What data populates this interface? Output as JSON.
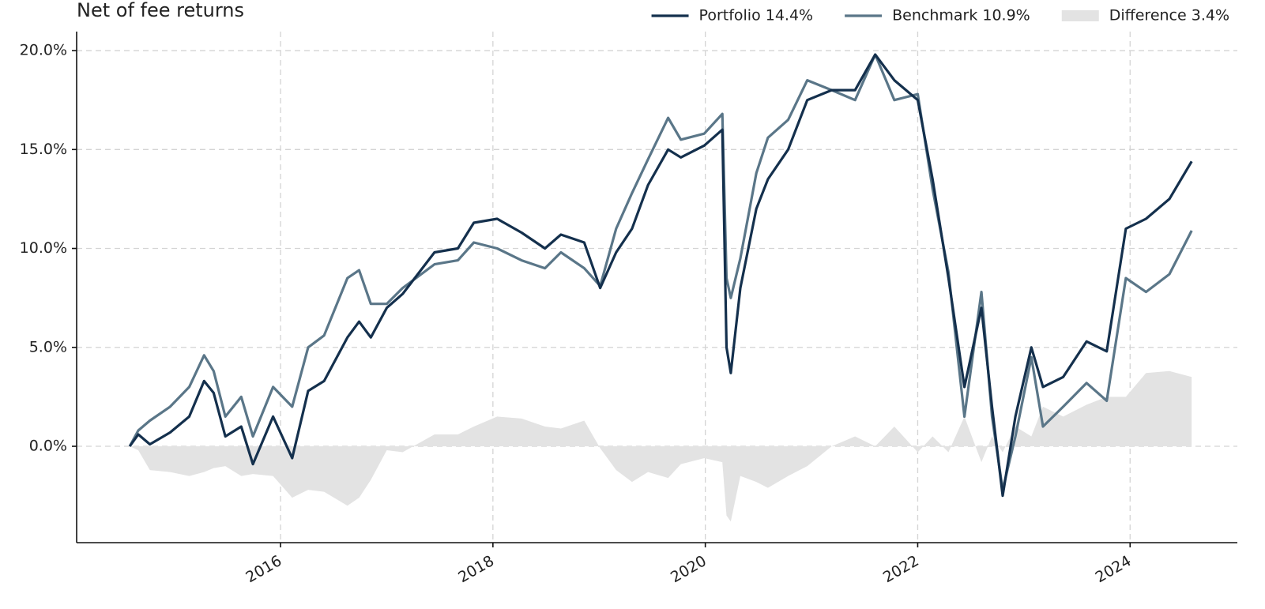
{
  "chart_data": {
    "type": "line",
    "title": "Net of fee returns",
    "x": [
      2014.58,
      2014.66,
      2014.77,
      2014.96,
      2015.14,
      2015.28,
      2015.37,
      2015.48,
      2015.63,
      2015.74,
      2015.93,
      2016.11,
      2016.26,
      2016.41,
      2016.63,
      2016.74,
      2016.85,
      2017.0,
      2017.15,
      2017.45,
      2017.67,
      2017.82,
      2018.04,
      2018.27,
      2018.49,
      2018.64,
      2018.86,
      2019.01,
      2019.16,
      2019.31,
      2019.46,
      2019.65,
      2019.77,
      2019.99,
      2020.16,
      2020.2,
      2020.24,
      2020.33,
      2020.48,
      2020.59,
      2020.78,
      2020.96,
      2021.19,
      2021.41,
      2021.6,
      2021.78,
      2022.0,
      2022.14,
      2022.29,
      2022.44,
      2022.6,
      2022.7,
      2022.8,
      2022.92,
      2023.07,
      2023.18,
      2023.37,
      2023.59,
      2023.78,
      2023.96,
      2024.15,
      2024.37,
      2024.58
    ],
    "series": [
      {
        "name": "Difference 3.4%",
        "color": "#e3e3e3",
        "area": true,
        "values": [
          0,
          -0.2,
          -1.2,
          -1.3,
          -1.5,
          -1.3,
          -1.1,
          -1.0,
          -1.5,
          -1.4,
          -1.5,
          -2.6,
          -2.2,
          -2.3,
          -3.0,
          -2.6,
          -1.7,
          -0.2,
          -0.3,
          0.6,
          0.6,
          1.0,
          1.5,
          1.4,
          1.0,
          0.9,
          1.3,
          -0.1,
          -1.2,
          -1.8,
          -1.3,
          -1.6,
          -0.9,
          -0.6,
          -0.8,
          -3.5,
          -3.8,
          -1.5,
          -1.8,
          -2.1,
          -1.5,
          -1.0,
          0,
          0.5,
          0,
          1.0,
          -0.3,
          0.5,
          -0.3,
          1.5,
          -0.8,
          0.5,
          -0.3,
          1.0,
          0.5,
          2.0,
          1.5,
          2.1,
          2.5,
          2.5,
          3.7,
          3.8,
          3.5
        ]
      },
      {
        "name": "Benchmark 10.9%",
        "color": "#5a7688",
        "values": [
          0,
          0.8,
          1.3,
          2.0,
          3.0,
          4.6,
          3.8,
          1.5,
          2.5,
          0.5,
          3.0,
          2.0,
          5.0,
          5.6,
          8.5,
          8.9,
          7.2,
          7.2,
          8.0,
          9.2,
          9.4,
          10.3,
          10.0,
          9.4,
          9.0,
          9.8,
          9.0,
          8.1,
          11.0,
          12.8,
          14.5,
          16.6,
          15.5,
          15.8,
          16.8,
          8.5,
          7.5,
          9.5,
          13.8,
          15.6,
          16.5,
          18.5,
          18.0,
          17.5,
          19.8,
          17.5,
          17.8,
          13.0,
          8.8,
          1.5,
          7.8,
          1.5,
          -2.2,
          0.5,
          4.5,
          1.0,
          2.0,
          3.2,
          2.3,
          8.5,
          7.8,
          8.7,
          10.9
        ]
      },
      {
        "name": "Portfolio 14.4%",
        "color": "#14304d",
        "values": [
          0,
          0.6,
          0.1,
          0.7,
          1.5,
          3.3,
          2.7,
          0.5,
          1.0,
          -0.9,
          1.5,
          -0.6,
          2.8,
          3.3,
          5.5,
          6.3,
          5.5,
          7.0,
          7.7,
          9.8,
          10.0,
          11.3,
          11.5,
          10.8,
          10.0,
          10.7,
          10.3,
          8.0,
          9.8,
          11.0,
          13.2,
          15.0,
          14.6,
          15.2,
          16.0,
          5.0,
          3.7,
          8.0,
          12.0,
          13.5,
          15.0,
          17.5,
          18.0,
          18.0,
          19.8,
          18.5,
          17.5,
          13.5,
          8.5,
          3.0,
          7.0,
          2.0,
          -2.5,
          1.5,
          5.0,
          3.0,
          3.5,
          5.3,
          4.8,
          11.0,
          11.5,
          12.5,
          14.4
        ]
      }
    ],
    "legend_order": [
      2,
      1,
      0
    ],
    "xlim": [
      2014.08,
      2025.01
    ],
    "xticks": [
      2016,
      2018,
      2020,
      2022,
      2024
    ],
    "ylim": [
      -4.87,
      20.96
    ],
    "yticks": [
      {
        "value": 0,
        "label": "0.0%"
      },
      {
        "value": 5,
        "label": "5.0%"
      },
      {
        "value": 10,
        "label": "10.0%"
      },
      {
        "value": 15,
        "label": "15.0%"
      },
      {
        "value": 20,
        "label": "20.0%"
      }
    ],
    "grid": true,
    "legend": "top right"
  }
}
